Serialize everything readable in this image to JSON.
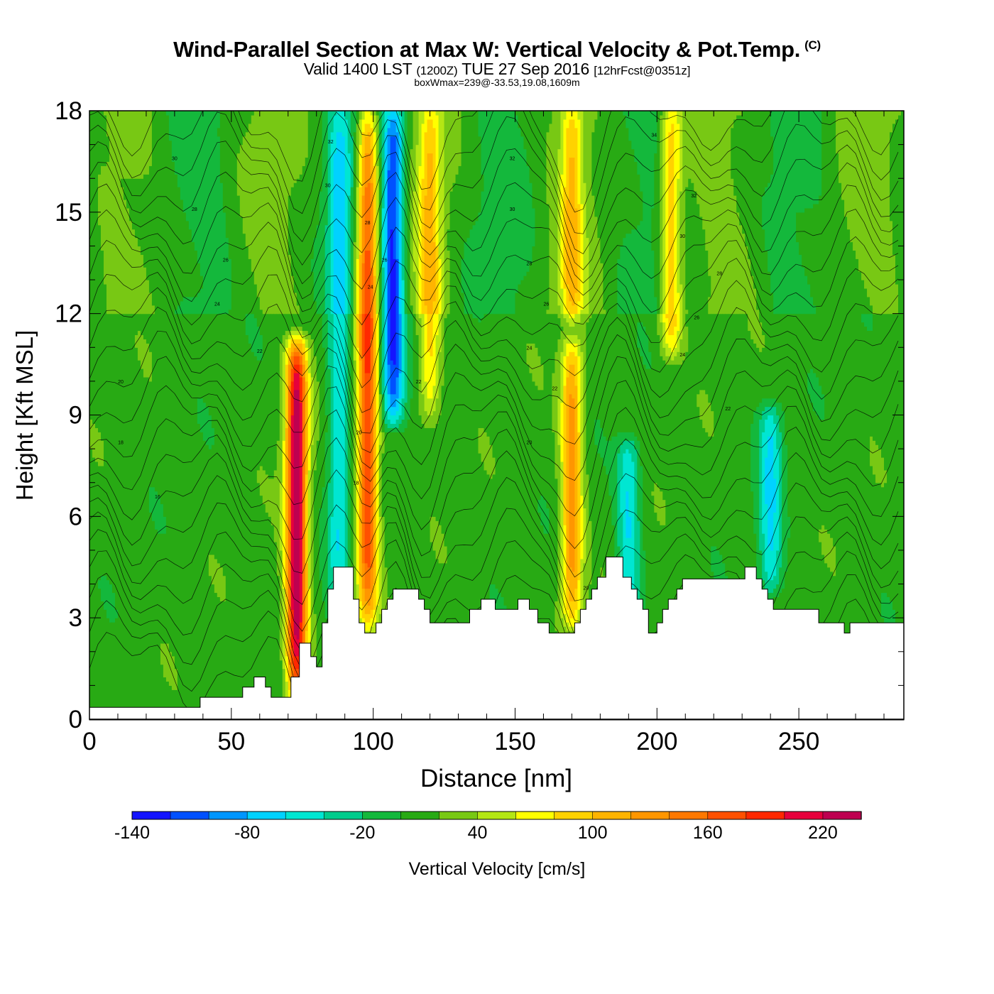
{
  "header": {
    "title": "Wind-Parallel Section at Max W: Vertical Velocity & Pot.Temp.",
    "copyright": "(C)",
    "subtitle_a": "Valid 1400 LST",
    "subtitle_b": "(1200Z)",
    "subtitle_c": "TUE 27 Sep 2016",
    "subtitle_d": "[12hrFcst@0351z]",
    "stat_line": "boxWmax=239@-33.53,19.08,1609m"
  },
  "chart_data": {
    "type": "heatmap",
    "xlabel": "Distance [nm]",
    "ylabel": "Height [Kft MSL]",
    "xlim": [
      0,
      287
    ],
    "ylim": [
      0,
      18
    ],
    "x_ticks": [
      0,
      50,
      100,
      150,
      200,
      250
    ],
    "y_ticks": [
      0,
      3,
      6,
      9,
      12,
      15,
      18
    ],
    "colorbar": {
      "label": "Vertical Velocity [cm/s]",
      "levels": [
        -140,
        -120,
        -100,
        -80,
        -60,
        -40,
        -20,
        0,
        20,
        40,
        60,
        80,
        100,
        120,
        140,
        160,
        180,
        200,
        220,
        240
      ],
      "tick_labels": [
        "-140",
        "-80",
        "-20",
        "40",
        "100",
        "160",
        "220"
      ],
      "colors": [
        "#1414ff",
        "#0050ff",
        "#0096ff",
        "#00d2ff",
        "#00e6d2",
        "#00cc8c",
        "#14b83c",
        "#28aa14",
        "#78c814",
        "#b4e614",
        "#ffff00",
        "#ffd200",
        "#ffb400",
        "#ff9600",
        "#ff7800",
        "#ff5000",
        "#ff2800",
        "#e6003c",
        "#be0050"
      ]
    },
    "updraft_bands": [
      {
        "x": 73,
        "y_range": [
          0.8,
          11
        ],
        "w_max": 239
      },
      {
        "x": 98,
        "y_range": [
          2.8,
          18
        ],
        "w_max": 180
      },
      {
        "x": 120,
        "y_range": [
          9,
          18
        ],
        "w_max": 90
      },
      {
        "x": 170,
        "y_range": [
          3,
          11
        ],
        "w_max": 130
      },
      {
        "x": 205,
        "y_range": [
          11,
          18
        ],
        "w_max": 100
      },
      {
        "x": 170,
        "y_range": [
          12,
          18
        ],
        "w_max": 90
      }
    ],
    "downdraft_bands": [
      {
        "x": 107,
        "y_range": [
          9,
          18
        ],
        "w_min": -130
      },
      {
        "x": 88,
        "y_range": [
          3,
          18
        ],
        "w_min": -60
      },
      {
        "x": 190,
        "y_range": [
          3,
          8
        ],
        "w_min": -60
      },
      {
        "x": 240,
        "y_range": [
          4,
          9
        ],
        "w_min": -60
      }
    ],
    "terrain": [
      [
        0,
        0.35
      ],
      [
        39,
        0.35
      ],
      [
        39,
        0.65
      ],
      [
        54,
        0.65
      ],
      [
        54,
        0.95
      ],
      [
        58,
        0.95
      ],
      [
        58,
        1.25
      ],
      [
        62,
        1.25
      ],
      [
        62,
        0.95
      ],
      [
        64,
        0.95
      ],
      [
        64,
        0.65
      ],
      [
        71,
        0.65
      ],
      [
        71,
        1.25
      ],
      [
        74,
        1.25
      ],
      [
        74,
        2.25
      ],
      [
        78,
        2.25
      ],
      [
        78,
        1.85
      ],
      [
        80,
        1.85
      ],
      [
        80,
        1.55
      ],
      [
        82,
        1.55
      ],
      [
        82,
        2.85
      ],
      [
        84,
        2.85
      ],
      [
        84,
        3.85
      ],
      [
        86,
        3.85
      ],
      [
        86,
        4.5
      ],
      [
        93,
        4.5
      ],
      [
        93,
        3.55
      ],
      [
        95,
        3.55
      ],
      [
        95,
        2.85
      ],
      [
        97,
        2.85
      ],
      [
        97,
        2.55
      ],
      [
        101,
        2.55
      ],
      [
        101,
        2.85
      ],
      [
        103,
        2.85
      ],
      [
        103,
        3.25
      ],
      [
        105,
        3.25
      ],
      [
        105,
        3.55
      ],
      [
        107,
        3.55
      ],
      [
        107,
        3.85
      ],
      [
        116,
        3.85
      ],
      [
        116,
        3.55
      ],
      [
        118,
        3.55
      ],
      [
        118,
        3.25
      ],
      [
        120,
        3.25
      ],
      [
        120,
        2.85
      ],
      [
        134,
        2.85
      ],
      [
        134,
        3.25
      ],
      [
        138,
        3.25
      ],
      [
        138,
        3.55
      ],
      [
        143,
        3.55
      ],
      [
        143,
        3.25
      ],
      [
        151,
        3.25
      ],
      [
        151,
        3.55
      ],
      [
        155,
        3.55
      ],
      [
        155,
        3.25
      ],
      [
        158,
        3.25
      ],
      [
        158,
        2.85
      ],
      [
        162,
        2.85
      ],
      [
        162,
        2.55
      ],
      [
        171,
        2.55
      ],
      [
        171,
        2.85
      ],
      [
        173,
        2.85
      ],
      [
        173,
        3.25
      ],
      [
        175,
        3.25
      ],
      [
        175,
        3.55
      ],
      [
        177,
        3.55
      ],
      [
        177,
        3.85
      ],
      [
        179,
        3.85
      ],
      [
        179,
        4.2
      ],
      [
        182,
        4.2
      ],
      [
        182,
        4.8
      ],
      [
        188,
        4.8
      ],
      [
        188,
        4.2
      ],
      [
        191,
        4.2
      ],
      [
        191,
        3.85
      ],
      [
        193,
        3.85
      ],
      [
        193,
        3.55
      ],
      [
        195,
        3.55
      ],
      [
        195,
        3.25
      ],
      [
        197,
        3.25
      ],
      [
        197,
        2.55
      ],
      [
        200,
        2.55
      ],
      [
        200,
        2.85
      ],
      [
        202,
        2.85
      ],
      [
        202,
        3.25
      ],
      [
        204,
        3.25
      ],
      [
        204,
        3.55
      ],
      [
        207,
        3.55
      ],
      [
        207,
        3.85
      ],
      [
        209,
        3.85
      ],
      [
        209,
        4.15
      ],
      [
        212,
        4.15
      ],
      [
        212,
        4.15
      ],
      [
        231,
        4.15
      ],
      [
        231,
        4.5
      ],
      [
        235,
        4.5
      ],
      [
        235,
        4.15
      ],
      [
        237,
        4.15
      ],
      [
        237,
        3.85
      ],
      [
        239,
        3.85
      ],
      [
        239,
        3.55
      ],
      [
        241,
        3.55
      ],
      [
        241,
        3.25
      ],
      [
        257,
        3.25
      ],
      [
        257,
        2.85
      ],
      [
        266,
        2.85
      ],
      [
        266,
        2.55
      ],
      [
        268,
        2.55
      ],
      [
        268,
        2.85
      ],
      [
        287,
        2.85
      ]
    ],
    "theta_contour_labels": [
      {
        "x": 30,
        "y": 16.6,
        "text": "30"
      },
      {
        "x": 37,
        "y": 15.1,
        "text": "28"
      },
      {
        "x": 48,
        "y": 13.6,
        "text": "26"
      },
      {
        "x": 45,
        "y": 12.3,
        "text": "24"
      },
      {
        "x": 60,
        "y": 10.9,
        "text": "22"
      },
      {
        "x": 11,
        "y": 10.0,
        "text": "20"
      },
      {
        "x": 11,
        "y": 8.2,
        "text": "18"
      },
      {
        "x": 24,
        "y": 6.6,
        "text": "16"
      },
      {
        "x": 85,
        "y": 17.1,
        "text": "32"
      },
      {
        "x": 84,
        "y": 15.8,
        "text": "30"
      },
      {
        "x": 98,
        "y": 14.7,
        "text": "28"
      },
      {
        "x": 104,
        "y": 13.6,
        "text": "26"
      },
      {
        "x": 99,
        "y": 12.8,
        "text": "24"
      },
      {
        "x": 116,
        "y": 10.0,
        "text": "22"
      },
      {
        "x": 95,
        "y": 8.5,
        "text": "20"
      },
      {
        "x": 94,
        "y": 7.0,
        "text": "18"
      },
      {
        "x": 149,
        "y": 16.6,
        "text": "32"
      },
      {
        "x": 149,
        "y": 15.1,
        "text": "30"
      },
      {
        "x": 155,
        "y": 13.5,
        "text": "28"
      },
      {
        "x": 161,
        "y": 12.3,
        "text": "26"
      },
      {
        "x": 155,
        "y": 11.0,
        "text": "24"
      },
      {
        "x": 164,
        "y": 9.8,
        "text": "22"
      },
      {
        "x": 155,
        "y": 8.2,
        "text": "20"
      },
      {
        "x": 199,
        "y": 17.3,
        "text": "34"
      },
      {
        "x": 213,
        "y": 15.5,
        "text": "32"
      },
      {
        "x": 209,
        "y": 14.3,
        "text": "30"
      },
      {
        "x": 222,
        "y": 13.2,
        "text": "28"
      },
      {
        "x": 214,
        "y": 11.9,
        "text": "26"
      },
      {
        "x": 209,
        "y": 10.8,
        "text": "24"
      },
      {
        "x": 225,
        "y": 9.2,
        "text": "22"
      },
      {
        "x": 175,
        "y": 3.9,
        "text": "20"
      }
    ]
  }
}
